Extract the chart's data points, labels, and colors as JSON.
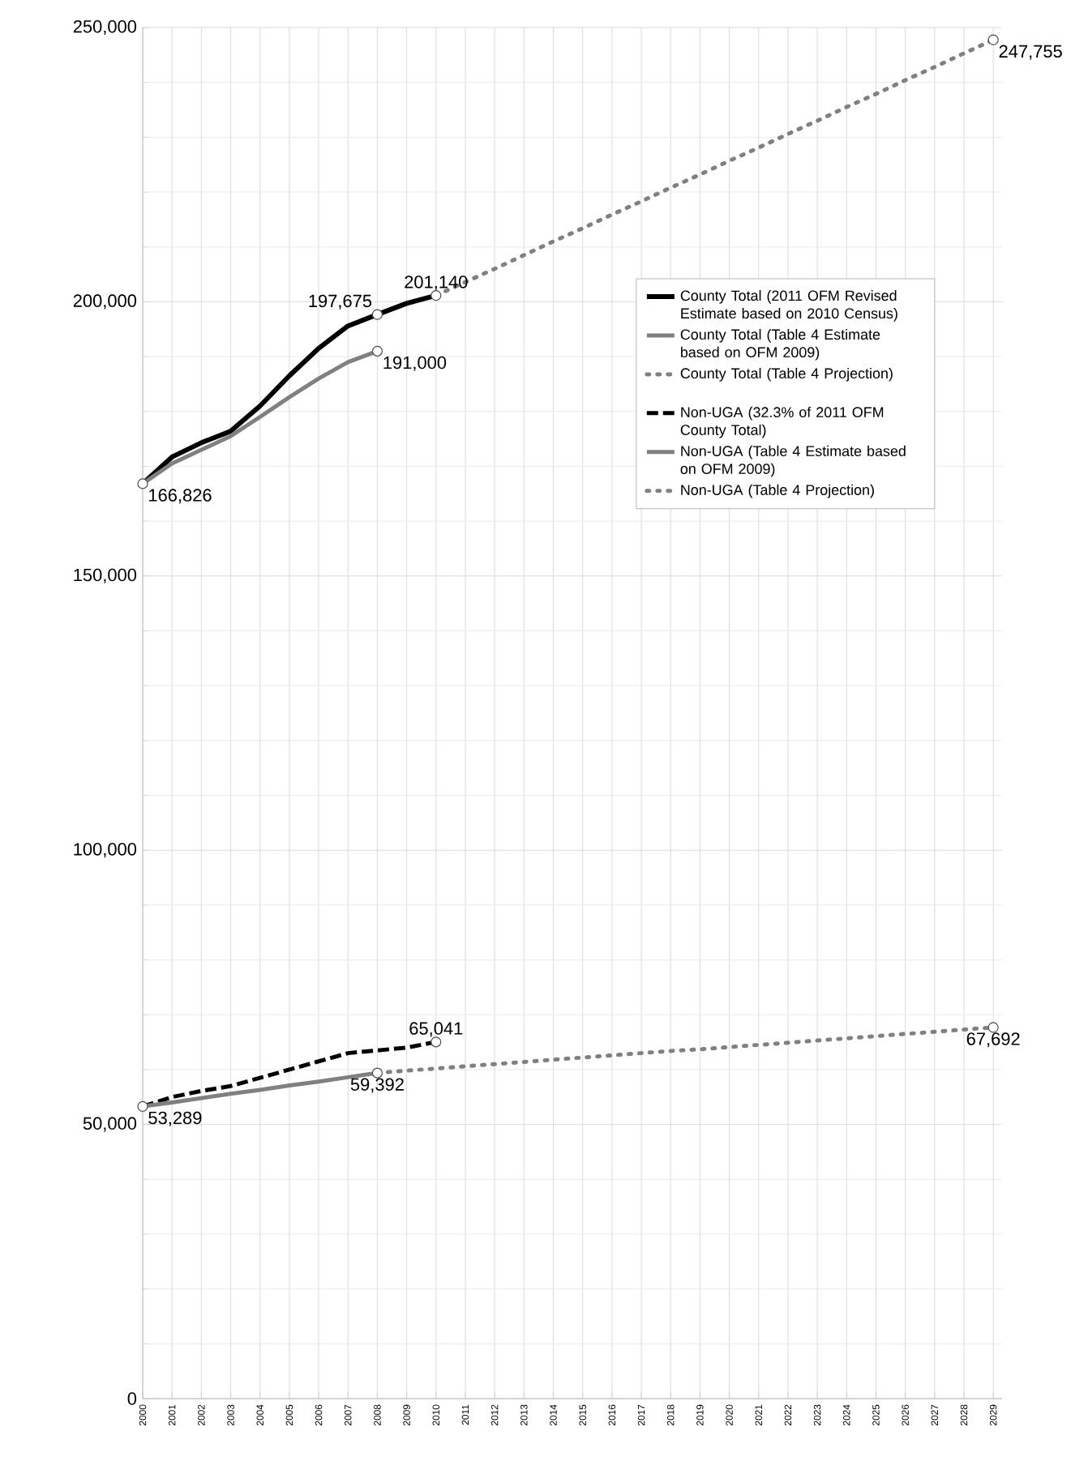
{
  "chart_data": {
    "type": "line",
    "categories": [
      "2000",
      "2001",
      "2002",
      "2003",
      "2004",
      "2005",
      "2006",
      "2007",
      "2008",
      "2009",
      "2010",
      "2011",
      "2012",
      "2013",
      "2014",
      "2015",
      "2016",
      "2017",
      "2018",
      "2019",
      "2020",
      "2021",
      "2022",
      "2023",
      "2024",
      "2025",
      "2026",
      "2027",
      "2028",
      "2029"
    ],
    "series": [
      {
        "name": "County Total (2011 OFM Revised Estimate based on 2010 Census)",
        "color": "#000000",
        "line_style": "solid",
        "values": [
          166826,
          171700,
          174300,
          176400,
          181000,
          186500,
          191500,
          195600,
          197675,
          199700,
          201140,
          null,
          null,
          null,
          null,
          null,
          null,
          null,
          null,
          null,
          null,
          null,
          null,
          null,
          null,
          null,
          null,
          null,
          null,
          null
        ]
      },
      {
        "name": "County Total (Table 4 Estimate based on OFM 2009)",
        "color": "#808080",
        "line_style": "solid",
        "values": [
          166826,
          170500,
          173000,
          175500,
          179000,
          182600,
          186000,
          189000,
          191000,
          null,
          null,
          null,
          null,
          null,
          null,
          null,
          null,
          null,
          null,
          null,
          null,
          null,
          null,
          null,
          null,
          null,
          null,
          null,
          null,
          null
        ]
      },
      {
        "name": "County Total (Table 4 Projection)",
        "color": "#808080",
        "line_style": "dotted",
        "values": [
          null,
          null,
          null,
          null,
          null,
          null,
          null,
          null,
          null,
          null,
          201140,
          203600,
          206000,
          208500,
          211000,
          213400,
          215900,
          218300,
          220800,
          223200,
          225700,
          228100,
          230600,
          233000,
          235500,
          237900,
          240400,
          242800,
          245300,
          247755
        ]
      },
      {
        "name": "Non-UGA (32.3% of 2011 OFM County Total)",
        "color": "#000000",
        "line_style": "dashed",
        "values": [
          53289,
          55000,
          56100,
          57000,
          58500,
          60000,
          61500,
          63000,
          63500,
          64000,
          65041,
          null,
          null,
          null,
          null,
          null,
          null,
          null,
          null,
          null,
          null,
          null,
          null,
          null,
          null,
          null,
          null,
          null,
          null,
          null
        ]
      },
      {
        "name": "Non-UGA (Table 4 Estimate based on OFM 2009)",
        "color": "#808080",
        "line_style": "solid",
        "values": [
          53289,
          54000,
          54800,
          55600,
          56300,
          57100,
          57800,
          58600,
          59392,
          null,
          null,
          null,
          null,
          null,
          null,
          null,
          null,
          null,
          null,
          null,
          null,
          null,
          null,
          null,
          null,
          null,
          null,
          null,
          null,
          null
        ]
      },
      {
        "name": "Non-UGA (Table 4 Projection)",
        "color": "#808080",
        "line_style": "dotted",
        "values": [
          null,
          null,
          null,
          null,
          null,
          null,
          null,
          null,
          59392,
          59800,
          60200,
          60600,
          61000,
          61400,
          61800,
          62200,
          62600,
          63000,
          63400,
          63700,
          64100,
          64500,
          64900,
          65300,
          65700,
          66100,
          66500,
          66900,
          67300,
          67692
        ]
      }
    ],
    "ylim": [
      0,
      250000
    ],
    "yticks": [
      {
        "value": 0,
        "label": "0"
      },
      {
        "value": 50000,
        "label": "50,000"
      },
      {
        "value": 100000,
        "label": "100,000"
      },
      {
        "value": 150000,
        "label": "150,000"
      },
      {
        "value": 200000,
        "label": "200,000"
      },
      {
        "value": 250000,
        "label": "250,000"
      }
    ],
    "grid": true,
    "legend": "right",
    "annotations": [
      {
        "text": "166,826",
        "x": "2000",
        "y": 166826
      },
      {
        "text": "197,675",
        "x": "2008",
        "y": 197675
      },
      {
        "text": "201,140",
        "x": "2010",
        "y": 201140
      },
      {
        "text": "191,000",
        "x": "2008",
        "y": 191000
      },
      {
        "text": "247,755",
        "x": "2029",
        "y": 247755
      },
      {
        "text": "53,289",
        "x": "2000",
        "y": 53289
      },
      {
        "text": "65,041",
        "x": "2010",
        "y": 65041
      },
      {
        "text": "59,392",
        "x": "2008",
        "y": 59392
      },
      {
        "text": "67,692",
        "x": "2029",
        "y": 67692
      }
    ]
  }
}
